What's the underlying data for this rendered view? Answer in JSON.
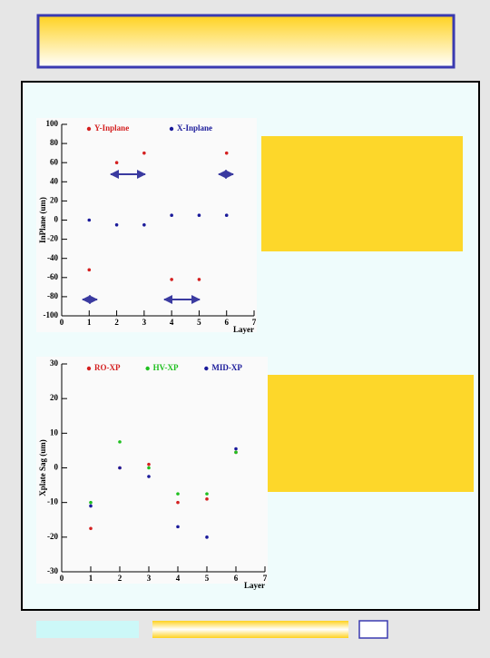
{
  "chart_data": [
    {
      "type": "scatter",
      "x_label": "Layer",
      "y_label": "InPlane (um)",
      "x": [
        1,
        2,
        3,
        4,
        5,
        6
      ],
      "series": [
        {
          "name": "Y-Inplane",
          "color": "#d42020",
          "values": [
            -52,
            60,
            70,
            -62,
            -62,
            70
          ]
        },
        {
          "name": "X-Inplane",
          "color": "#1a1a9a",
          "values": [
            0,
            -5,
            -5,
            5,
            5,
            5
          ]
        }
      ],
      "xlim": [
        0,
        7
      ],
      "xticks": [
        0,
        1,
        2,
        3,
        4,
        5,
        6,
        7
      ],
      "ylim": [
        -100,
        100
      ],
      "yticks": [
        -100,
        -80,
        -60,
        -40,
        -20,
        0,
        20,
        40,
        60,
        80,
        100
      ]
    },
    {
      "type": "scatter",
      "x_label": "Layer",
      "y_label": "Xplate Sag (um)",
      "x": [
        1,
        2,
        3,
        4,
        5,
        6
      ],
      "series": [
        {
          "name": "RO-XP",
          "color": "#d42020",
          "values": [
            -17.5,
            0,
            1,
            -10,
            -9,
            4.5
          ]
        },
        {
          "name": "HV-XP",
          "color": "#20c020",
          "values": [
            -10,
            7.5,
            0,
            -7.5,
            -7.5,
            4.5
          ]
        },
        {
          "name": "MID-XP",
          "color": "#1a1a9a",
          "values": [
            -11,
            0,
            -2.5,
            -17,
            -20,
            5.5
          ]
        }
      ],
      "xlim": [
        0,
        7
      ],
      "xticks": [
        0,
        1,
        2,
        3,
        4,
        5,
        6,
        7
      ],
      "ylim": [
        -30,
        30
      ],
      "yticks": [
        -30,
        -20,
        -10,
        0,
        10,
        20,
        30
      ]
    }
  ]
}
